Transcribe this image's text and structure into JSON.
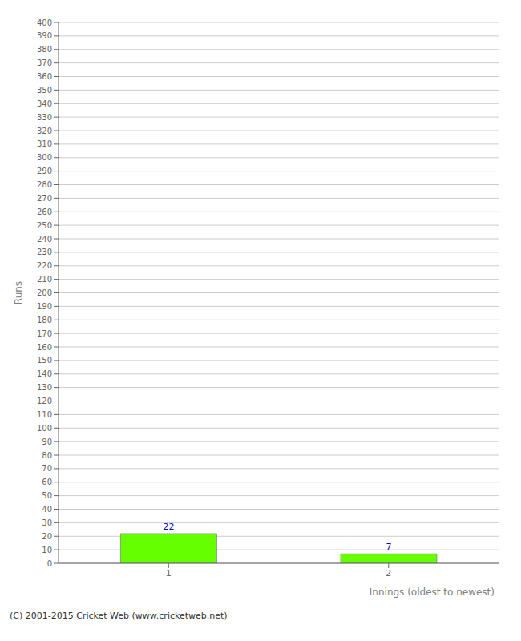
{
  "chart_data": {
    "type": "bar",
    "xlabel": "Innings (oldest to newest)",
    "ylabel": "Runs",
    "categories": [
      "1",
      "2"
    ],
    "values": [
      22,
      7
    ],
    "color": "#66ff00",
    "ylim": [
      0,
      400
    ],
    "yticks": [
      0,
      10,
      20,
      30,
      40,
      50,
      60,
      70,
      80,
      90,
      100,
      110,
      120,
      130,
      140,
      150,
      160,
      170,
      180,
      190,
      200,
      210,
      220,
      230,
      240,
      250,
      260,
      270,
      280,
      290,
      300,
      310,
      320,
      330,
      340,
      350,
      360,
      370,
      380,
      390,
      400
    ],
    "grid": true,
    "data_labels": true,
    "annotations": [
      "(C) 2001-2015 Cricket Web (www.cricketweb.net)"
    ]
  }
}
